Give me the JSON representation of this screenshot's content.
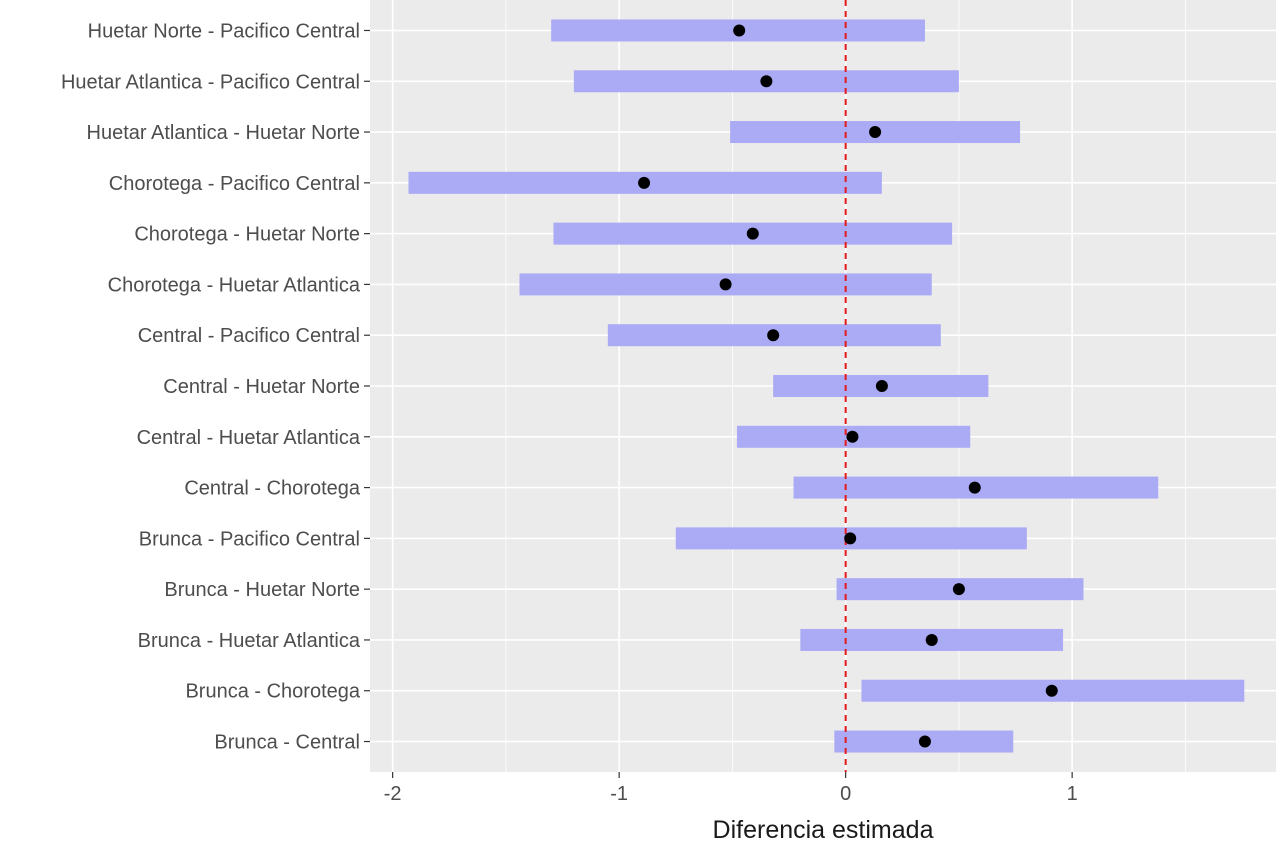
{
  "chart_data": {
    "type": "interval",
    "xlabel": "Diferencia estimada",
    "ylabel": "",
    "xlim": [
      -2.1,
      1.9
    ],
    "x_ticks": [
      -2,
      -1,
      0,
      1
    ],
    "x_tick_labels": [
      "-2",
      "-1",
      "0",
      "1"
    ],
    "reference_line": {
      "x": 0,
      "color": "#e41a1c",
      "style": "dashed"
    },
    "grid": true,
    "categories": [
      "Huetar Norte - Pacifico Central",
      "Huetar Atlantica - Pacifico Central",
      "Huetar Atlantica - Huetar Norte",
      "Chorotega - Pacifico Central",
      "Chorotega - Huetar Norte",
      "Chorotega - Huetar Atlantica",
      "Central - Pacifico Central",
      "Central - Huetar Norte",
      "Central - Huetar Atlantica",
      "Central - Chorotega",
      "Brunca - Pacifico Central",
      "Brunca - Huetar Norte",
      "Brunca - Huetar Atlantica",
      "Brunca - Chorotega",
      "Brunca - Central"
    ],
    "estimate": [
      -0.47,
      -0.35,
      0.13,
      -0.89,
      -0.41,
      -0.53,
      -0.32,
      0.16,
      0.03,
      0.57,
      0.02,
      0.5,
      0.38,
      0.91,
      0.35
    ],
    "lower": [
      -1.3,
      -1.2,
      -0.51,
      -1.93,
      -1.29,
      -1.44,
      -1.05,
      -0.32,
      -0.48,
      -0.23,
      -0.75,
      -0.04,
      -0.2,
      0.07,
      -0.05
    ],
    "upper": [
      0.35,
      0.5,
      0.77,
      0.16,
      0.47,
      0.38,
      0.42,
      0.63,
      0.55,
      1.38,
      0.8,
      1.05,
      0.96,
      1.76,
      0.74
    ],
    "colors": {
      "panel": "#ebebeb",
      "grid_major": "#ffffff",
      "interval": "#aaaaf5",
      "point": "#000000",
      "reference": "#e41a1c",
      "tick_label": "#4d4d4d",
      "axis_title": "#1a1a1a"
    }
  }
}
